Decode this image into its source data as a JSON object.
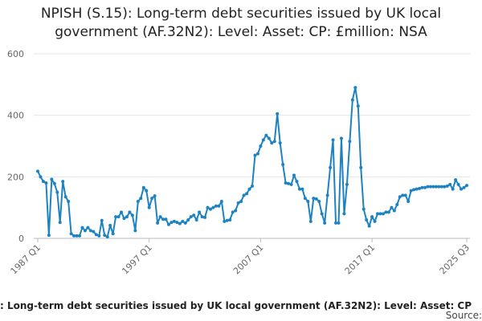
{
  "chart_data": {
    "type": "line",
    "title": "NPISH (S.15): Long-term debt securities issued by UK local government (AF.32N2): Level: Asset: CP: £million: NSA",
    "source": "Source:",
    "categories": [
      "1987 Q1",
      null,
      null,
      null,
      null,
      null,
      null,
      null,
      null,
      null,
      null,
      null,
      null,
      null,
      null,
      null,
      null,
      null,
      null,
      null,
      null,
      null,
      null,
      null,
      null,
      null,
      null,
      null,
      null,
      null,
      null,
      null,
      null,
      null,
      null,
      null,
      null,
      null,
      null,
      null,
      "1997 Q1",
      null,
      null,
      null,
      null,
      null,
      null,
      null,
      null,
      null,
      null,
      null,
      null,
      null,
      null,
      null,
      null,
      null,
      null,
      null,
      null,
      null,
      null,
      null,
      null,
      null,
      null,
      null,
      null,
      null,
      null,
      null,
      null,
      null,
      null,
      null,
      null,
      null,
      null,
      null,
      "2007 Q1",
      null,
      null,
      null,
      null,
      null,
      null,
      null,
      null,
      null,
      null,
      null,
      null,
      null,
      null,
      null,
      null,
      null,
      null,
      null,
      null,
      null,
      null,
      null,
      null,
      null,
      null,
      null,
      null,
      null,
      null,
      null,
      null,
      null,
      null,
      null,
      null,
      null,
      null,
      null,
      "2017 Q1",
      null,
      null,
      null,
      null,
      null,
      null,
      null,
      null,
      null,
      null,
      null,
      null,
      null,
      null,
      null,
      null,
      null,
      null,
      null,
      null,
      null,
      null,
      null,
      null,
      null,
      null,
      null,
      null,
      null,
      null,
      null,
      null,
      null,
      "2025 Q3"
    ],
    "series": [
      {
        "name": ": Long-term debt securities issued by UK local government (AF.32N2): Level: Asset: CP",
        "color": "#1f82c0",
        "values": [
          218,
          200,
          185,
          180,
          10,
          192,
          178,
          150,
          52,
          185,
          135,
          120,
          15,
          8,
          8,
          8,
          35,
          25,
          35,
          25,
          22,
          12,
          8,
          58,
          10,
          5,
          42,
          15,
          70,
          70,
          85,
          65,
          70,
          85,
          75,
          25,
          120,
          130,
          165,
          155,
          100,
          130,
          138,
          50,
          70,
          62,
          62,
          45,
          52,
          55,
          52,
          48,
          55,
          50,
          60,
          70,
          75,
          60,
          85,
          70,
          68,
          100,
          95,
          100,
          105,
          105,
          120,
          55,
          58,
          60,
          85,
          90,
          115,
          120,
          140,
          145,
          160,
          170,
          270,
          275,
          300,
          320,
          335,
          325,
          310,
          315,
          405,
          310,
          240,
          180,
          178,
          175,
          205,
          185,
          160,
          160,
          130,
          120,
          55,
          130,
          128,
          120,
          80,
          50,
          140,
          230,
          320,
          50,
          50,
          325,
          80,
          175,
          315,
          450,
          490,
          430,
          230,
          95,
          60,
          40,
          70,
          55,
          80,
          80,
          80,
          85,
          85,
          100,
          90,
          110,
          135,
          140,
          140,
          120,
          155,
          158,
          160,
          162,
          165,
          165,
          168,
          168,
          168,
          168,
          168,
          168,
          168,
          170,
          175,
          160,
          190,
          175,
          160,
          165,
          172
        ]
      }
    ],
    "ylim": [
      0,
      600
    ],
    "yticks": [
      0,
      200,
      400,
      600
    ],
    "grid": true
  }
}
